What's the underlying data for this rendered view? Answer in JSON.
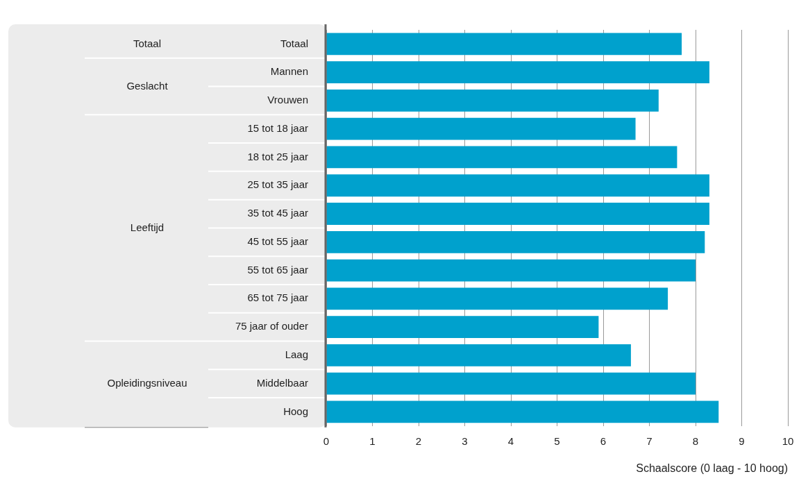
{
  "chart_data": {
    "type": "bar",
    "orientation": "horizontal",
    "categories": [
      "Totaal",
      "Mannen",
      "Vrouwen",
      "15 tot 18 jaar",
      "18 tot 25 jaar",
      "25 tot 35 jaar",
      "35 tot 45 jaar",
      "45 tot 55 jaar",
      "55 tot 65 jaar",
      "65 tot 75 jaar",
      "75 jaar of ouder",
      "Laag",
      "Middelbaar",
      "Hoog"
    ],
    "values": [
      7.7,
      8.3,
      7.2,
      6.7,
      7.6,
      8.3,
      8.3,
      8.2,
      8.0,
      7.4,
      5.9,
      6.6,
      8.0,
      8.5
    ],
    "color": "#00a1cd",
    "xlim": [
      0,
      10
    ],
    "xticks": [
      0,
      1,
      2,
      3,
      4,
      5,
      6,
      7,
      8,
      9,
      10
    ],
    "xlabel": "Schaalscore (0 laag - 10 hoog)",
    "grid": "x",
    "legend": false,
    "annotations": [
      "Totaal",
      "Geslacht",
      "Leeftijd",
      "Opleidingsniveau"
    ]
  }
}
